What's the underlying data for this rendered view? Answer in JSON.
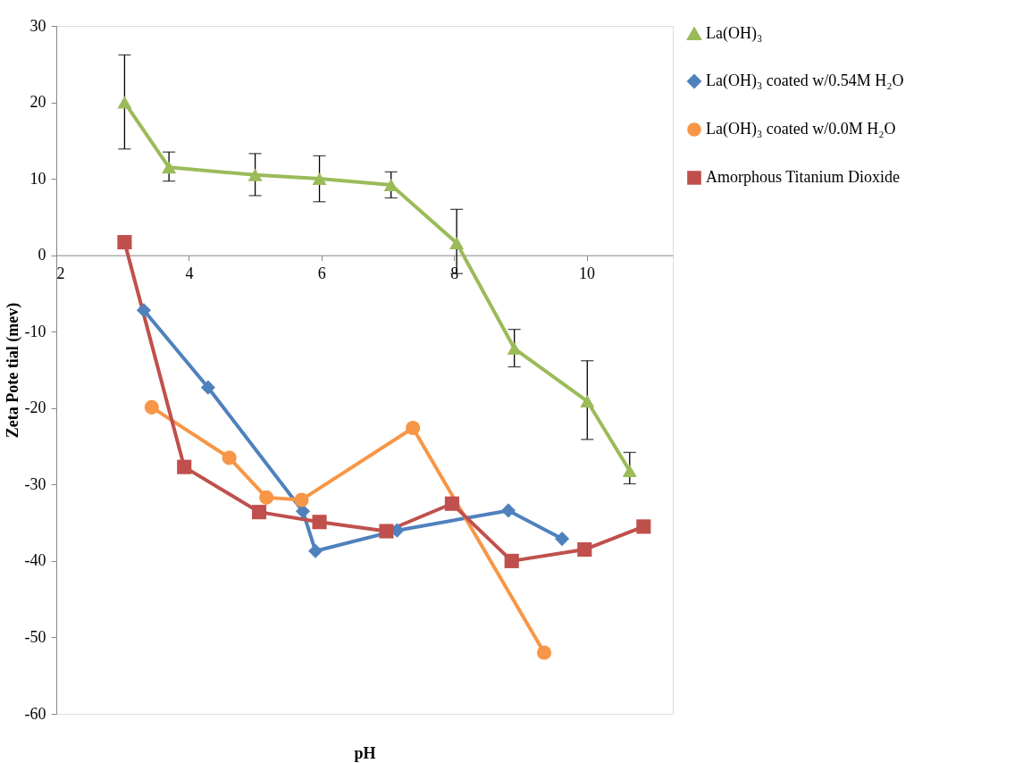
{
  "chart_data": {
    "type": "line",
    "xlabel": "pH",
    "ylabel": "Zeta Pote tial (mev)",
    "xlim": [
      2,
      11.3
    ],
    "xticks": [
      2,
      4,
      6,
      8,
      10
    ],
    "ylim": [
      -60,
      30
    ],
    "yticks": [
      -60,
      -50,
      -40,
      -30,
      -20,
      -10,
      0,
      10,
      20,
      30
    ],
    "grid": false,
    "legend": "top right",
    "line_style": "solid",
    "series": [
      {
        "name": "La(OH)₃",
        "color": "#9bbb59",
        "marker": "triangle",
        "x": [
          3.03,
          3.7,
          5.0,
          5.97,
          7.05,
          8.04,
          8.91,
          10.01,
          10.65
        ],
        "values": [
          20.0,
          11.5,
          10.5,
          10.0,
          9.2,
          1.6,
          -12.2,
          -19.1,
          -28.2
        ],
        "errors": [
          [
            13.9,
            26.2
          ],
          [
            9.7,
            13.5
          ],
          [
            7.8,
            13.3
          ],
          [
            7.0,
            13.0
          ],
          [
            7.5,
            10.9
          ],
          [
            -2.4,
            6.0
          ],
          [
            -14.6,
            -9.7
          ],
          [
            -24.1,
            -13.8
          ],
          [
            -29.9,
            -25.8
          ]
        ]
      },
      {
        "name": "La(OH)₃ coated w/0.54M H₂O",
        "color": "#4f81bd",
        "marker": "diamond",
        "x": [
          3.32,
          4.29,
          5.72,
          5.91,
          7.14,
          8.82,
          9.63
        ],
        "values": [
          -7.2,
          -17.3,
          -33.5,
          -38.7,
          -36.0,
          -33.4,
          -37.1
        ]
      },
      {
        "name": "La(OH)₃ coated w/0.0M H₂O",
        "color": "#f79646",
        "marker": "circle",
        "x": [
          3.44,
          4.61,
          5.17,
          5.7,
          7.38,
          9.36
        ],
        "values": [
          -19.9,
          -26.5,
          -31.7,
          -32.0,
          -22.6,
          -52.0
        ]
      },
      {
        "name": "Amorphous Titanium Dioxide",
        "color": "#c0504d",
        "marker": "square",
        "x": [
          3.03,
          3.93,
          5.06,
          5.97,
          6.98,
          7.97,
          8.87,
          9.97,
          10.86
        ],
        "values": [
          1.7,
          -27.7,
          -33.6,
          -34.9,
          -36.1,
          -32.5,
          -40.0,
          -38.5,
          -35.5
        ]
      }
    ]
  }
}
